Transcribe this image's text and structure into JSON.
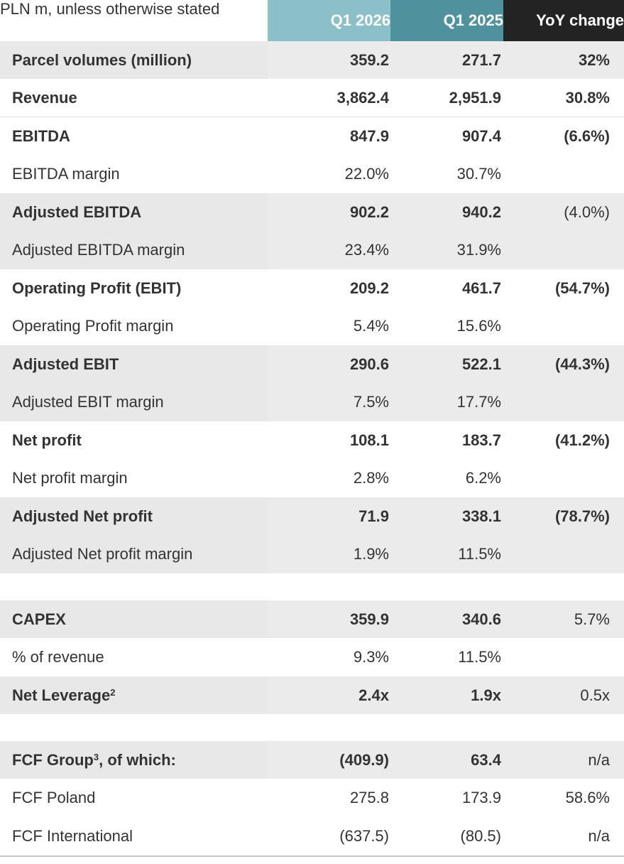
{
  "header": {
    "unit_note": "PLN m, unless otherwise stated",
    "col1": "Q1 2026",
    "col2": "Q1 2025",
    "col3": "YoY change"
  },
  "colors": {
    "q1_2026_header": "#8cc0c9",
    "q1_2025_header": "#4f929e",
    "yoy_header": "#232323",
    "shaded_row": "#ebebeb"
  },
  "rows": [
    {
      "label": "Parcel volumes (million)",
      "q1_2026": "359.2",
      "q1_2025": "271.7",
      "yoy": "32%"
    },
    {
      "label": "Revenue",
      "q1_2026": "3,862.4",
      "q1_2025": "2,951.9",
      "yoy": "30.8%"
    },
    {
      "label": "EBITDA",
      "q1_2026": "847.9",
      "q1_2025": "907.4",
      "yoy": "(6.6%)"
    },
    {
      "label": "EBITDA margin",
      "q1_2026": "22.0%",
      "q1_2025": "30.7%",
      "yoy": ""
    },
    {
      "label": "Adjusted EBITDA",
      "q1_2026": "902.2",
      "q1_2025": "940.2",
      "yoy": "(4.0%)"
    },
    {
      "label": "Adjusted EBITDA margin",
      "q1_2026": "23.4%",
      "q1_2025": "31.9%",
      "yoy": ""
    },
    {
      "label": "Operating Profit (EBIT)",
      "q1_2026": "209.2",
      "q1_2025": "461.7",
      "yoy": "(54.7%)"
    },
    {
      "label": "Operating Profit margin",
      "q1_2026": "5.4%",
      "q1_2025": "15.6%",
      "yoy": ""
    },
    {
      "label": "Adjusted EBIT",
      "q1_2026": "290.6",
      "q1_2025": "522.1",
      "yoy": "(44.3%)"
    },
    {
      "label": "Adjusted EBIT margin",
      "q1_2026": "7.5%",
      "q1_2025": "17.7%",
      "yoy": ""
    },
    {
      "label": "Net profit",
      "q1_2026": "108.1",
      "q1_2025": "183.7",
      "yoy": "(41.2%)"
    },
    {
      "label": "Net profit margin",
      "q1_2026": "2.8%",
      "q1_2025": "6.2%",
      "yoy": ""
    },
    {
      "label": "Adjusted Net profit",
      "q1_2026": "71.9",
      "q1_2025": "338.1",
      "yoy": "(78.7%)"
    },
    {
      "label": "Adjusted Net profit margin",
      "q1_2026": "1.9%",
      "q1_2025": "11.5%",
      "yoy": ""
    },
    {
      "label": "CAPEX",
      "q1_2026": "359.9",
      "q1_2025": "340.6",
      "yoy": "5.7%"
    },
    {
      "label": "% of revenue",
      "q1_2026": "9.3%",
      "q1_2025": "11.5%",
      "yoy": ""
    },
    {
      "label": "Net Leverage",
      "footnote": "2",
      "q1_2026": "2.4x",
      "q1_2025": "1.9x",
      "yoy": "0.5x"
    },
    {
      "label": "FCF Group",
      "footnote": "3",
      "label_suffix": ", of which:",
      "q1_2026": "(409.9)",
      "q1_2025": "63.4",
      "yoy": "n/a"
    },
    {
      "label": "FCF Poland",
      "q1_2026": "275.8",
      "q1_2025": "173.9",
      "yoy": "58.6%"
    },
    {
      "label": "FCF International",
      "q1_2026": "(637.5)",
      "q1_2025": "(80.5)",
      "yoy": "n/a"
    }
  ]
}
